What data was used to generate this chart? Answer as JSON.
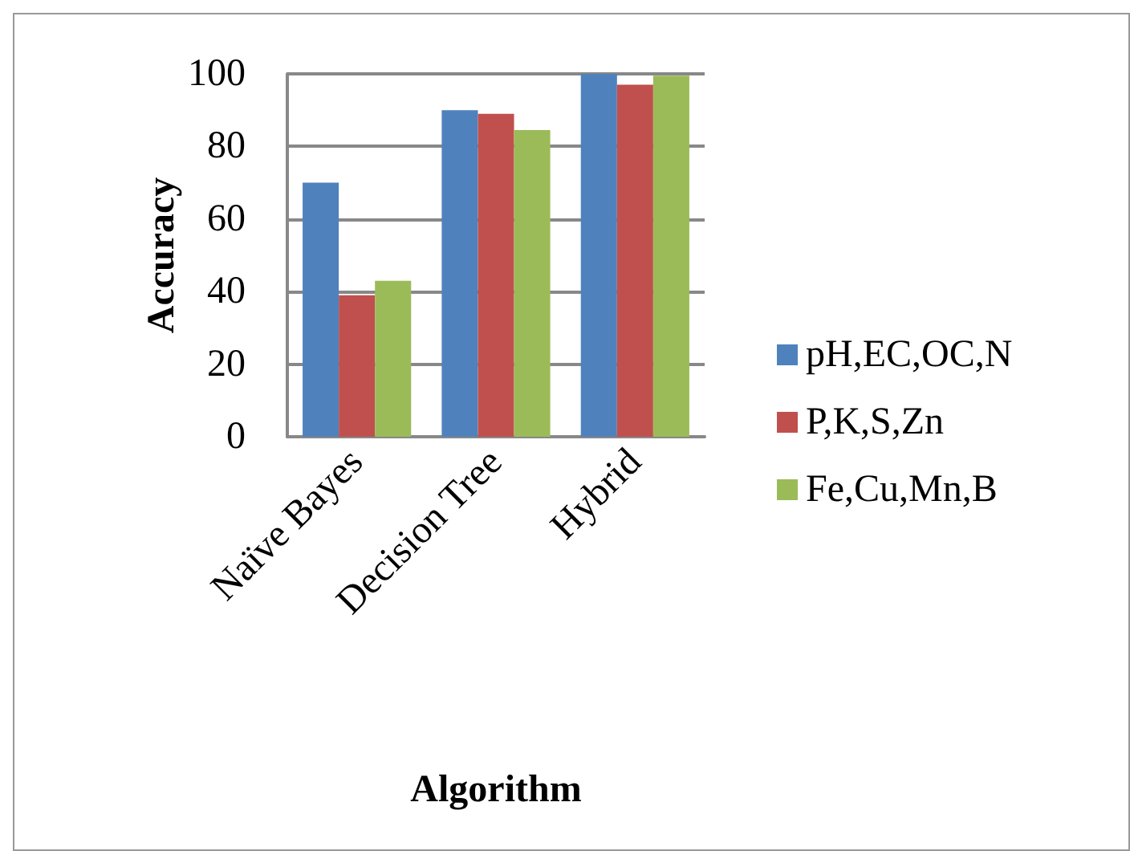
{
  "chart_data": {
    "type": "bar",
    "xlabel": "Algorithm",
    "ylabel": "Accuracy",
    "categories": [
      "Naïve Bayes",
      "Decision Tree",
      "Hybrid"
    ],
    "series": [
      {
        "name": "pH,EC,OC,N",
        "color": "#4f81bd",
        "values": [
          70,
          90,
          100
        ]
      },
      {
        "name": "P,K,S,Zn",
        "color": "#c0504d",
        "values": [
          39,
          89,
          97
        ]
      },
      {
        "name": "Fe,Cu,Mn,B",
        "color": "#9bbb59",
        "values": [
          43,
          84.5,
          99.5
        ]
      }
    ],
    "ylim": [
      0,
      100
    ],
    "yticks": [
      0,
      20,
      40,
      60,
      80,
      100
    ],
    "grid": "y",
    "legend": "right"
  }
}
